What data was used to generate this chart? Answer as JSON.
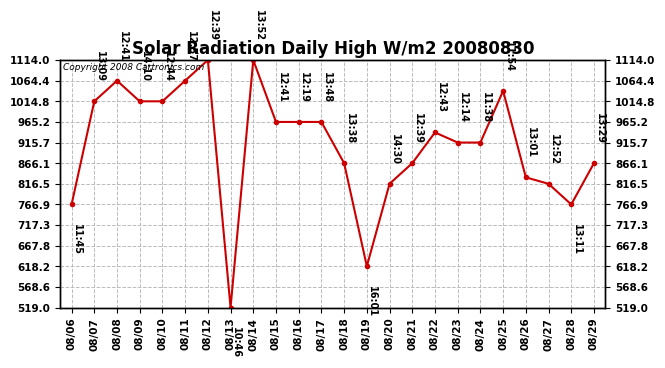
{
  "title": "Solar Radiation Daily High W/m2 20080830",
  "copyright": "Copyright 2008 Cartronics.com",
  "dates": [
    "08/06",
    "08/07",
    "08/08",
    "08/09",
    "08/10",
    "08/11",
    "08/12",
    "08/13",
    "08/14",
    "08/15",
    "08/16",
    "08/17",
    "08/18",
    "08/19",
    "08/20",
    "08/21",
    "08/22",
    "08/23",
    "08/24",
    "08/25",
    "08/26",
    "08/27",
    "08/28",
    "08/29"
  ],
  "values": [
    766.9,
    1014.8,
    1064.4,
    1014.8,
    1014.8,
    1064.4,
    1114.0,
    519.0,
    1114.0,
    965.2,
    965.2,
    965.2,
    866.1,
    618.2,
    816.5,
    866.1,
    940.0,
    915.7,
    915.7,
    1040.0,
    832.0,
    816.5,
    766.9,
    866.1
  ],
  "labels": [
    "11:45",
    "13:09",
    "12:41",
    "14:10",
    "12:44",
    "12:57",
    "12:39",
    "10:46",
    "13:52",
    "12:41",
    "12:19",
    "13:48",
    "13:38",
    "16:01",
    "14:30",
    "12:39",
    "12:43",
    "12:14",
    "11:38",
    "11:54",
    "13:01",
    "12:52",
    "13:11",
    "13:29"
  ],
  "label_above": [
    false,
    true,
    true,
    true,
    true,
    true,
    true,
    false,
    true,
    true,
    true,
    true,
    true,
    false,
    true,
    true,
    true,
    true,
    true,
    true,
    true,
    true,
    false,
    true
  ],
  "ylim": [
    519.0,
    1114.0
  ],
  "yticks": [
    519.0,
    568.6,
    618.2,
    667.8,
    717.3,
    766.9,
    816.5,
    866.1,
    915.7,
    965.2,
    1014.8,
    1064.4,
    1114.0
  ],
  "line_color": "#cc0000",
  "marker_color": "#cc0000",
  "bg_color": "#ffffff",
  "grid_color": "#bbbbbb",
  "title_fontsize": 12,
  "label_fontsize": 7,
  "tick_fontsize": 7.5
}
